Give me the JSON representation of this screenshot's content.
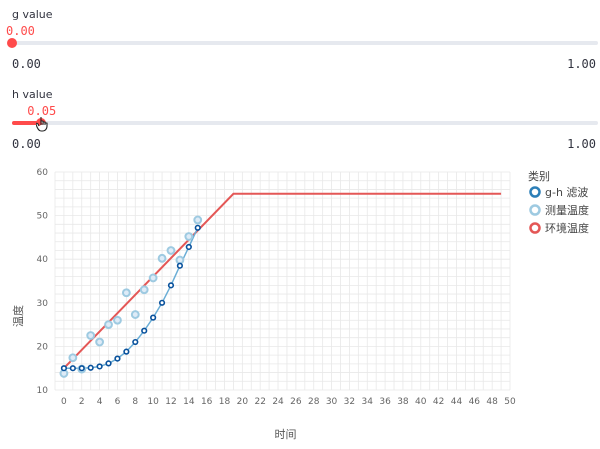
{
  "controls": {
    "g": {
      "label": "g value",
      "value": 0.0,
      "value_text": "0.00",
      "min_text": "0.00",
      "max_text": "1.00"
    },
    "h": {
      "label": "h value",
      "value": 0.05,
      "value_text": "0.05",
      "min_text": "0.00",
      "max_text": "1.00"
    }
  },
  "colors": {
    "accent": "#ff4b4b",
    "track": "#e6e9ef"
  },
  "chart_data": {
    "type": "line",
    "xlabel": "时间",
    "ylabel": "温度",
    "xlim": [
      -1,
      50
    ],
    "ylim": [
      10,
      60
    ],
    "xticks": [
      0,
      2,
      4,
      6,
      8,
      10,
      12,
      14,
      16,
      18,
      20,
      22,
      24,
      26,
      28,
      30,
      32,
      34,
      36,
      38,
      40,
      42,
      44,
      46,
      48,
      50
    ],
    "yticks": [
      10,
      20,
      30,
      40,
      50,
      60
    ],
    "grid": true,
    "legend": {
      "title": "类别",
      "position": "right",
      "entries": [
        {
          "name": "g-h 滤波",
          "color": "#2c7fb8"
        },
        {
          "name": "测量温度",
          "color": "#9ecae1"
        },
        {
          "name": "环境温度",
          "color": "#e45756"
        }
      ]
    },
    "series": [
      {
        "name": "g-h 滤波",
        "color": "#2c7fb8",
        "mark": "line+point",
        "x": [
          0,
          1,
          2,
          3,
          4,
          5,
          6,
          7,
          8,
          9,
          10,
          11,
          12,
          13,
          14,
          15
        ],
        "y": [
          15.0,
          15.0,
          15.0,
          15.1,
          15.4,
          16.1,
          17.2,
          18.8,
          21.0,
          23.6,
          26.6,
          30.0,
          34.0,
          38.5,
          42.8,
          47.2
        ]
      },
      {
        "name": "测量温度",
        "color": "#9ecae1",
        "mark": "point",
        "x": [
          0,
          1,
          2,
          3,
          4,
          5,
          6,
          7,
          8,
          9,
          10,
          11,
          12,
          13,
          14,
          15
        ],
        "y": [
          13.8,
          17.4,
          14.8,
          22.5,
          21.0,
          25.0,
          26.0,
          32.3,
          27.3,
          33.0,
          35.7,
          40.2,
          42.0,
          39.8,
          45.2,
          49.0
        ]
      },
      {
        "name": "环境温度",
        "color": "#e45756",
        "mark": "line",
        "x": [
          0,
          19,
          49
        ],
        "y": [
          15,
          55,
          55
        ]
      }
    ]
  }
}
